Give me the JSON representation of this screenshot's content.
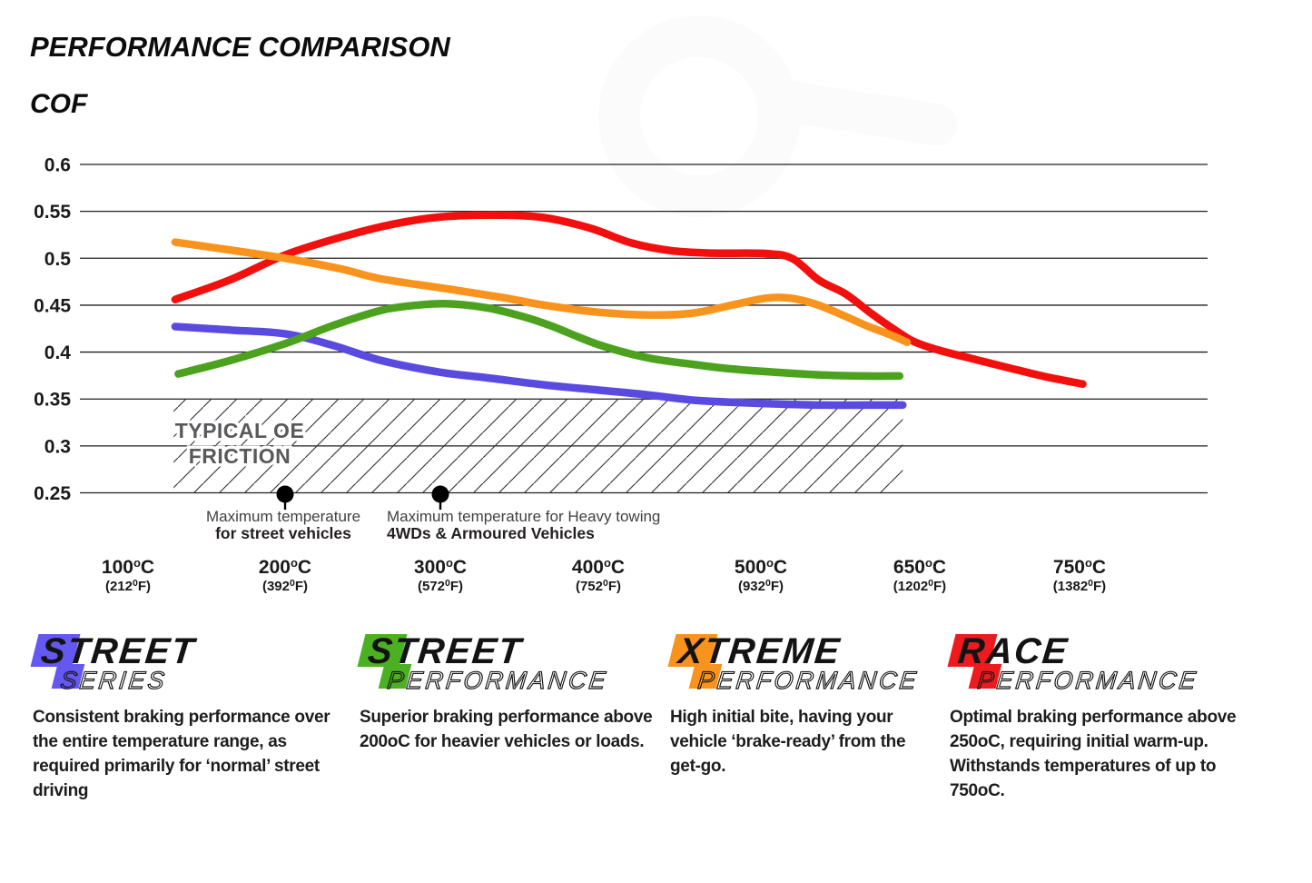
{
  "header": {
    "title": "PERFORMANCE COMPARISON",
    "y_axis_title": "COF"
  },
  "chart_data": {
    "type": "line",
    "title": "PERFORMANCE COMPARISON",
    "ylabel": "COF",
    "grid": "horizontal",
    "legend_position": "bottom",
    "y_range": [
      0.25,
      0.6
    ],
    "y_ticks": [
      "0.6",
      "0.55",
      "0.5",
      "0.45",
      "0.4",
      "0.35",
      "0.3",
      "0.25"
    ],
    "x_tick_temps": [
      100,
      200,
      300,
      400,
      500,
      650,
      750
    ],
    "x_ticks": [
      {
        "celsius": "100",
        "fahrenheit": "212"
      },
      {
        "celsius": "200",
        "fahrenheit": "392"
      },
      {
        "celsius": "300",
        "fahrenheit": "572"
      },
      {
        "celsius": "400",
        "fahrenheit": "752"
      },
      {
        "celsius": "500",
        "fahrenheit": "932"
      },
      {
        "celsius": "650",
        "fahrenheit": "1202"
      },
      {
        "celsius": "750",
        "fahrenheit": "1382"
      }
    ],
    "series": [
      {
        "name": "Race Performance",
        "color": "#f2100f",
        "points": [
          [
            130,
            0.456
          ],
          [
            165,
            0.477
          ],
          [
            200,
            0.5035
          ],
          [
            235,
            0.522
          ],
          [
            270,
            0.5365
          ],
          [
            300,
            0.544
          ],
          [
            335,
            0.546
          ],
          [
            365,
            0.5435
          ],
          [
            395,
            0.532
          ],
          [
            420,
            0.5165
          ],
          [
            445,
            0.508
          ],
          [
            470,
            0.5055
          ],
          [
            505,
            0.505
          ],
          [
            530,
            0.4995
          ],
          [
            555,
            0.4765
          ],
          [
            580,
            0.462
          ],
          [
            605,
            0.4405
          ],
          [
            628,
            0.4225
          ],
          [
            645,
            0.411
          ],
          [
            662,
            0.402
          ],
          [
            685,
            0.392
          ],
          [
            705,
            0.3835
          ],
          [
            728,
            0.374
          ],
          [
            752,
            0.366
          ]
        ]
      },
      {
        "name": "Xtreme Performance",
        "color": "#f8941e",
        "points": [
          [
            130,
            0.5172
          ],
          [
            200,
            0.5
          ],
          [
            235,
            0.489
          ],
          [
            262,
            0.478
          ],
          [
            302,
            0.468
          ],
          [
            340,
            0.458
          ],
          [
            366,
            0.45
          ],
          [
            400,
            0.4425
          ],
          [
            432,
            0.4395
          ],
          [
            458,
            0.4415
          ],
          [
            482,
            0.45
          ],
          [
            505,
            0.4575
          ],
          [
            528,
            0.4575
          ],
          [
            552,
            0.451
          ],
          [
            575,
            0.4405
          ],
          [
            600,
            0.428
          ],
          [
            622,
            0.4185
          ],
          [
            638,
            0.4105
          ]
        ]
      },
      {
        "name": "Street Series",
        "color": "#5a4be0",
        "points": [
          [
            130,
            0.4272
          ],
          [
            165,
            0.4235
          ],
          [
            200,
            0.4195
          ],
          [
            230,
            0.4075
          ],
          [
            262,
            0.391
          ],
          [
            300,
            0.3785
          ],
          [
            330,
            0.3725
          ],
          [
            366,
            0.365
          ],
          [
            400,
            0.3595
          ],
          [
            430,
            0.3545
          ],
          [
            460,
            0.3485
          ],
          [
            490,
            0.346
          ],
          [
            520,
            0.3445
          ],
          [
            560,
            0.3435
          ],
          [
            600,
            0.3435
          ],
          [
            634,
            0.3435
          ]
        ]
      },
      {
        "name": "Street Performance",
        "color": "#4ca21f",
        "points": [
          [
            132,
            0.3768
          ],
          [
            165,
            0.391
          ],
          [
            200,
            0.409
          ],
          [
            232,
            0.429
          ],
          [
            262,
            0.4445
          ],
          [
            285,
            0.45
          ],
          [
            305,
            0.4515
          ],
          [
            330,
            0.447
          ],
          [
            352,
            0.438
          ],
          [
            370,
            0.428
          ],
          [
            400,
            0.408
          ],
          [
            430,
            0.394
          ],
          [
            458,
            0.387
          ],
          [
            482,
            0.382
          ],
          [
            520,
            0.378
          ],
          [
            560,
            0.3755
          ],
          [
            600,
            0.3745
          ],
          [
            631,
            0.3745
          ]
        ]
      }
    ],
    "oe_zone": {
      "label_line1": "TYPICAL OE",
      "label_line2": "FRICTION",
      "cof_top": 0.35,
      "cof_bottom": 0.25,
      "temp_start": 129,
      "temp_end": 634
    },
    "markers": [
      {
        "temp": 200,
        "cof": 0.25,
        "line1": "Maximum temperature",
        "line2": "for street vehicles",
        "align": "center"
      },
      {
        "temp": 300,
        "cof": 0.25,
        "line1": "Maximum temperature for Heavy towing",
        "line2": "4WDs & Armoured Vehicles",
        "align": "left"
      }
    ]
  },
  "legend": [
    {
      "word1": "STREET",
      "word2": "SERIES",
      "color": "#6558f0",
      "description": "Consistent braking performance over the entire temperature range, as required primarily for ‘normal’ street driving"
    },
    {
      "word1": "STREET",
      "word2": "PERFORMANCE",
      "color": "#4cb122",
      "description": "Superior braking performance above 200oC for heavier vehicles or loads."
    },
    {
      "word1": "XTREME",
      "word2": "PERFORMANCE",
      "color": "#f8941e",
      "description": "High initial bite, having your vehicle ‘brake-ready’ from the get-go."
    },
    {
      "word1": "RACE",
      "word2": "PERFORMANCE",
      "color": "#ed1b1e",
      "description": "Optimal braking performance above 250oC, requiring initial warm-up. Withstands temperatures of up to 750oC."
    }
  ]
}
